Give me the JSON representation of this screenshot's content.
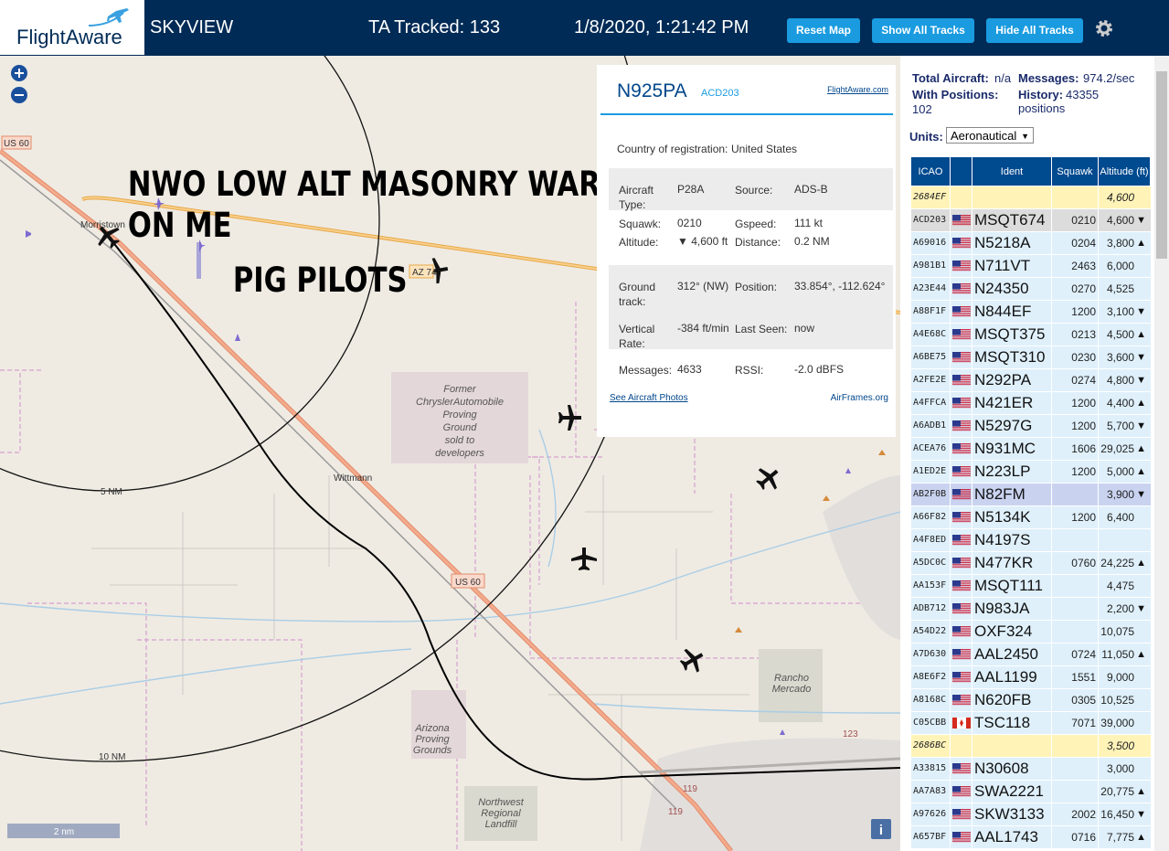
{
  "header": {
    "logo": "FlightAware",
    "title": "SKYVIEW",
    "tracked": "TA Tracked: 133",
    "datetime": "1/8/2020, 1:21:42 PM",
    "buttons": [
      "Reset Map",
      "Show All Tracks",
      "Hide All Tracks"
    ]
  },
  "map": {
    "graffiti": [
      "NWO LOW ALT MASONRY WAR",
      "ON ME"
    ],
    "graffiti2": "PIG PILOTS",
    "labels": {
      "morristown": "Morristown",
      "us60a": "US 60",
      "us60b": "US 60",
      "az74": "AZ 74",
      "nm5": "5 NM",
      "nm10": "10 NM",
      "wittmann": "Wittmann",
      "r123": "123",
      "r119a": "119",
      "r119b": "119",
      "scale": "2 nm"
    },
    "chrysler": [
      "Former",
      "ChryslerAutomobile",
      "Proving",
      "Ground",
      "sold to",
      "developers"
    ],
    "arizona": [
      "Arizona",
      "Proving",
      "Grounds"
    ],
    "rancho": [
      "Rancho",
      "Mercado"
    ],
    "landfill": [
      "Northwest",
      "Regional",
      "Landfill"
    ]
  },
  "popup": {
    "callsign": "N925PA",
    "hex": "ACD203",
    "link": "FlightAware.com",
    "country_label": "Country of registration:",
    "country": "United States",
    "fields": [
      [
        [
          "Aircraft Type:",
          "P28A"
        ],
        [
          "Source:",
          "ADS-B"
        ]
      ],
      [
        [
          "Squawk:",
          "0210"
        ],
        [
          "Gspeed:",
          "111 kt"
        ],
        [
          "Altitude:",
          "▼ 4,600 ft"
        ],
        [
          "Distance:",
          "0.2 NM"
        ]
      ],
      [
        [
          "Ground track:",
          "312° (NW)"
        ],
        [
          "Position:",
          "33.854°, -112.624°"
        ],
        [
          "Vertical Rate:",
          "-384 ft/min"
        ],
        [
          "Last Seen:",
          "now"
        ]
      ],
      [
        [
          "Messages:",
          "4633"
        ],
        [
          "RSSI:",
          "-2.0 dBFS"
        ]
      ]
    ],
    "photos": "See Aircraft Photos",
    "airframes": "AirFrames.org"
  },
  "sidebar": {
    "total_label": "Total Aircraft:",
    "total": "n/a",
    "messages_label": "Messages:",
    "messages": "974.2/sec",
    "positions_label": "With Positions:",
    "positions": "102",
    "history_label": "History:",
    "history": "43355 positions",
    "units_label": "Units:",
    "units": "Aeronautical"
  },
  "table": {
    "columns": [
      "ICAO",
      "Ident",
      "Squawk",
      "Altitude (ft)"
    ],
    "rows": [
      {
        "icao": "2684EF",
        "altitude": "4,600",
        "color": "#fff3b8"
      },
      {
        "icao": "ACD203",
        "flag": "us",
        "ident": "MSQT674",
        "squawk": "0210",
        "altitude": "4,600",
        "trend": "▼",
        "color": "#dcdcdc"
      },
      {
        "icao": "A69016",
        "flag": "us",
        "ident": "N5218A",
        "squawk": "0204",
        "altitude": "3,800",
        "trend": "▲"
      },
      {
        "icao": "A981B1",
        "flag": "us",
        "ident": "N711VT",
        "squawk": "2463",
        "altitude": "6,000"
      },
      {
        "icao": "A23E44",
        "flag": "us",
        "ident": "N24350",
        "squawk": "0270",
        "altitude": "4,525"
      },
      {
        "icao": "A88F1F",
        "flag": "us",
        "ident": "N844EF",
        "squawk": "1200",
        "altitude": "3,100",
        "trend": "▼"
      },
      {
        "icao": "A4E68C",
        "flag": "us",
        "ident": "MSQT375",
        "squawk": "0213",
        "altitude": "4,500",
        "trend": "▲"
      },
      {
        "icao": "A6BE75",
        "flag": "us",
        "ident": "MSQT310",
        "squawk": "0230",
        "altitude": "3,600",
        "trend": "▼"
      },
      {
        "icao": "A2FE2E",
        "flag": "us",
        "ident": "N292PA",
        "squawk": "0274",
        "altitude": "4,800",
        "trend": "▼"
      },
      {
        "icao": "A4FFCA",
        "flag": "us",
        "ident": "N421ER",
        "squawk": "1200",
        "altitude": "4,400",
        "trend": "▲"
      },
      {
        "icao": "A6ADB1",
        "flag": "us",
        "ident": "N5297G",
        "squawk": "1200",
        "altitude": "5,700",
        "trend": "▼"
      },
      {
        "icao": "ACEA76",
        "flag": "us",
        "ident": "N931MC",
        "squawk": "1606",
        "altitude": "29,025",
        "trend": "▲"
      },
      {
        "icao": "A1ED2E",
        "flag": "us",
        "ident": "N223LP",
        "squawk": "1200",
        "altitude": "5,000",
        "trend": "▲"
      },
      {
        "icao": "AB2F0B",
        "flag": "us",
        "ident": "N82FM",
        "altitude": "3,900",
        "trend": "▼",
        "color": "#c9d3f0"
      },
      {
        "icao": "A66F82",
        "flag": "us",
        "ident": "N5134K",
        "squawk": "1200",
        "altitude": "6,400"
      },
      {
        "icao": "A4F8ED",
        "flag": "us",
        "ident": "N4197S"
      },
      {
        "icao": "A5DC0C",
        "flag": "us",
        "ident": "N477KR",
        "squawk": "0760",
        "altitude": "24,225",
        "trend": "▲"
      },
      {
        "icao": "AA153F",
        "flag": "us",
        "ident": "MSQT111",
        "altitude": "4,475"
      },
      {
        "icao": "ADB712",
        "flag": "us",
        "ident": "N983JA",
        "altitude": "2,200",
        "trend": "▼"
      },
      {
        "icao": "A54D22",
        "flag": "us",
        "ident": "OXF324",
        "altitude": "10,075"
      },
      {
        "icao": "A7D630",
        "flag": "us",
        "ident": "AAL2450",
        "squawk": "0724",
        "altitude": "11,050",
        "trend": "▲"
      },
      {
        "icao": "A8E6F2",
        "flag": "us",
        "ident": "AAL1199",
        "squawk": "1551",
        "altitude": "9,000"
      },
      {
        "icao": "A8168C",
        "flag": "us",
        "ident": "N620FB",
        "squawk": "0305",
        "altitude": "10,525"
      },
      {
        "icao": "C05CBB",
        "flag": "ca",
        "ident": "TSC118",
        "squawk": "7071",
        "altitude": "39,000"
      },
      {
        "icao": "2686BC",
        "altitude": "3,500",
        "color": "#fff3b8"
      },
      {
        "icao": "A33815",
        "flag": "us",
        "ident": "N30608",
        "altitude": "3,000"
      },
      {
        "icao": "AA7A83",
        "flag": "us",
        "ident": "SWA2221",
        "altitude": "20,775",
        "trend": "▲"
      },
      {
        "icao": "A97626",
        "flag": "us",
        "ident": "SKW3133",
        "squawk": "2002",
        "altitude": "16,450",
        "trend": "▼"
      },
      {
        "icao": "A657BF",
        "flag": "us",
        "ident": "AAL1743",
        "squawk": "0716",
        "altitude": "7,775",
        "trend": "▲"
      }
    ]
  }
}
